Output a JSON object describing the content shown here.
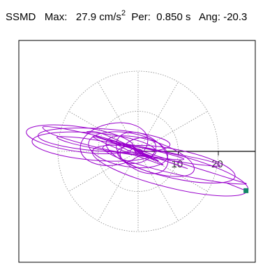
{
  "header": {
    "station": "SSMD",
    "max_label": "Max:",
    "max_value": "27.9",
    "max_unit": "cm/s",
    "max_unit_exp": "2",
    "per_label": "Per:",
    "per_value": "0.850 s",
    "ang_label": "Ang:",
    "ang_value": "-20.3"
  },
  "chart_data": {
    "type": "polar",
    "radial_unit": "cm/s^2",
    "radial_ticks": [
      10,
      20
    ],
    "radial_tick_labels": [
      "10",
      "20"
    ],
    "max_amplitude": 27.9,
    "angle_deg": -20.3,
    "period_s": 0.85,
    "trace_color": "#9900cc",
    "marker_color": "#118866",
    "orbit_path": [
      [
        -2.1,
        1.3
      ],
      [
        -5.8,
        2.6
      ],
      [
        -11.2,
        4.1
      ],
      [
        -18.9,
        5.7
      ],
      [
        -23.7,
        6.1
      ],
      [
        -21.4,
        4.3
      ],
      [
        -14.1,
        2.0
      ],
      [
        -6.2,
        0.1
      ],
      [
        1.9,
        -1.1
      ],
      [
        8.7,
        -2.0
      ],
      [
        11.4,
        -1.9
      ],
      [
        7.3,
        -0.6
      ],
      [
        0.7,
        0.9
      ],
      [
        -6.8,
        2.2
      ],
      [
        -14.7,
        3.4
      ],
      [
        -20.2,
        3.6
      ],
      [
        -17.3,
        2.2
      ],
      [
        -9.6,
        0.5
      ],
      [
        -1.1,
        -0.9
      ],
      [
        7.1,
        -2.1
      ],
      [
        15.1,
        -3.3
      ],
      [
        20.4,
        -3.6
      ],
      [
        16.9,
        -2.2
      ],
      [
        9.1,
        -0.6
      ],
      [
        1.2,
        1.1
      ],
      [
        -4.4,
        2.1
      ],
      [
        -9.1,
        3.3
      ],
      [
        -12.8,
        4.8
      ],
      [
        -9.7,
        4.7
      ],
      [
        -4.1,
        2.3
      ],
      [
        2.7,
        -0.5
      ],
      [
        10.2,
        -2.8
      ],
      [
        17.9,
        -5.2
      ],
      [
        24.6,
        -7.3
      ],
      [
        26.9,
        -8.1
      ],
      [
        22.1,
        -7.9
      ],
      [
        14.4,
        -6.7
      ],
      [
        6.1,
        -4.9
      ],
      [
        -0.4,
        -3.1
      ],
      [
        -5.7,
        -1.3
      ],
      [
        -8.8,
        0.8
      ],
      [
        -6.2,
        1.9
      ],
      [
        -1.4,
        0.6
      ],
      [
        3.9,
        -1.4
      ],
      [
        8.9,
        -3.1
      ],
      [
        12.3,
        -4.3
      ],
      [
        9.1,
        -3.2
      ],
      [
        3.4,
        -1.2
      ],
      [
        -2.2,
        0.9
      ],
      [
        -7.3,
        2.6
      ],
      [
        -11.3,
        3.7
      ],
      [
        -8.4,
        2.1
      ],
      [
        -3.1,
        -0.1
      ],
      [
        2.4,
        -2.1
      ],
      [
        6.2,
        -3.4
      ],
      [
        4.1,
        -2.1
      ],
      [
        0.3,
        -0.2
      ],
      [
        -3.9,
        1.7
      ],
      [
        -7.0,
        2.8
      ],
      [
        -5.1,
        1.6
      ],
      [
        -1.3,
        -0.3
      ],
      [
        2.6,
        -1.6
      ],
      [
        5.1,
        -2.4
      ],
      [
        3.2,
        -1.4
      ],
      [
        0.2,
        0.1
      ],
      [
        -2.8,
        1.5
      ],
      [
        -4.3,
        2.4
      ],
      [
        -2.6,
        1.3
      ],
      [
        0.4,
        -0.4
      ],
      [
        2.9,
        -1.7
      ],
      [
        4.1,
        -2.2
      ],
      [
        2.3,
        -1.1
      ],
      [
        -0.2,
        0.6
      ],
      [
        -2.2,
        1.6
      ],
      [
        -1.7,
        1.0
      ],
      [
        0.1,
        -0.3
      ],
      [
        1.8,
        -1.2
      ],
      [
        2.7,
        -1.6
      ],
      [
        1.4,
        -0.6
      ],
      [
        -0.3,
        0.4
      ],
      [
        -1.1,
        0.9
      ],
      [
        -0.6,
        0.2
      ],
      [
        0.8,
        -0.7
      ],
      [
        1.6,
        -1.1
      ],
      [
        0.9,
        -0.2
      ],
      [
        0.2,
        0.4
      ],
      [
        -0.6,
        0.7
      ],
      [
        -0.9,
        0.2
      ],
      [
        -0.2,
        -0.4
      ],
      [
        0.6,
        -0.6
      ],
      [
        1.1,
        0.1
      ],
      [
        0.7,
        0.4
      ],
      [
        -0.1,
        0.5
      ],
      [
        -0.7,
        -0.2
      ],
      [
        -0.3,
        -0.6
      ],
      [
        0.2,
        -0.3
      ],
      [
        0.5,
        0.3
      ],
      [
        0.1,
        0.3
      ],
      [
        -0.2,
        0.0
      ],
      [
        0.0,
        -0.1
      ]
    ],
    "orbit_loops": [
      {
        "cx": -14.5,
        "cy": 3.0,
        "rx": 13.5,
        "ry": 3.1,
        "tilt": 8
      },
      {
        "cx": -11.0,
        "cy": 1.2,
        "rx": 15.5,
        "ry": 3.4,
        "tilt": 5
      },
      {
        "cx": 9.5,
        "cy": -3.2,
        "rx": 15.0,
        "ry": 3.6,
        "tilt": 12
      },
      {
        "cx": 8.0,
        "cy": -4.8,
        "rx": 20.0,
        "ry": 4.2,
        "tilt": 14
      },
      {
        "cx": -2.5,
        "cy": 0.4,
        "rx": 10.0,
        "ry": 4.2,
        "tilt": 10
      },
      {
        "cx": 3.0,
        "cy": -1.2,
        "rx": 11.5,
        "ry": 3.8,
        "tilt": 18
      },
      {
        "cx": -6.0,
        "cy": 1.8,
        "rx": 8.5,
        "ry": 5.2,
        "tilt": -10
      },
      {
        "cx": 1.0,
        "cy": -0.4,
        "rx": 7.0,
        "ry": 4.4,
        "tilt": 30
      },
      {
        "cx": 0.0,
        "cy": 0.2,
        "rx": 4.6,
        "ry": 3.0,
        "tilt": -20
      },
      {
        "cx": -8.5,
        "cy": 2.8,
        "rx": 16.5,
        "ry": 2.8,
        "tilt": 4
      }
    ],
    "end_marker": [
      26.9,
      -9.8
    ]
  }
}
